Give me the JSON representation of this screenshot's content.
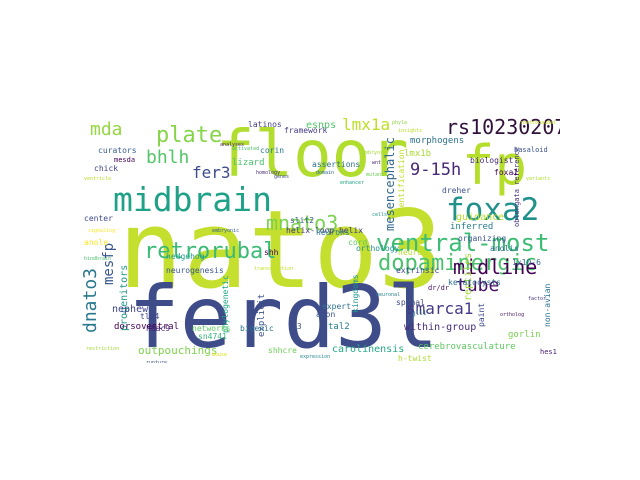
{
  "words": [
    {
      "text": "nato3",
      "color": "#c5df2e"
    },
    {
      "text": "ferd3l",
      "color": "#3e4c89"
    },
    {
      "text": "floor",
      "color": "#b1dd2f"
    },
    {
      "text": "fp",
      "color": "#b5de2b"
    },
    {
      "text": "midbrain",
      "color": "#1fa187"
    },
    {
      "text": "foxa2",
      "color": "#21918c"
    },
    {
      "text": "ventral-most",
      "color": "#3dbc74"
    },
    {
      "text": "dopaminergic",
      "color": "#4ac16d"
    },
    {
      "text": "retrorubal",
      "color": "#3aba76"
    },
    {
      "text": "midline",
      "color": "#440154"
    },
    {
      "text": "rs10230207",
      "color": "#30123b"
    },
    {
      "text": "mnato3",
      "color": "#7ad151"
    },
    {
      "text": "plate",
      "color": "#86d549"
    },
    {
      "text": "mda",
      "color": "#95d840"
    },
    {
      "text": "bhlh",
      "color": "#54c568"
    },
    {
      "text": "fer3",
      "color": "#3e4a89"
    },
    {
      "text": "9-15h",
      "color": "#482777"
    },
    {
      "text": "lmx1a",
      "color": "#bddf26"
    },
    {
      "text": "smarca1",
      "color": "#443a83"
    },
    {
      "text": "tube",
      "color": "#471063"
    },
    {
      "text": "dnato3",
      "color": "#2a788e"
    },
    {
      "text": "mesfp",
      "color": "#39568c"
    },
    {
      "text": "mesencephalic",
      "color": "#31688e"
    },
    {
      "text": "guidance",
      "color": "#b5de2b"
    },
    {
      "text": "lmx1b",
      "color": "#a8db34"
    },
    {
      "text": "esnps",
      "color": "#52c569"
    },
    {
      "text": "morphogens",
      "color": "#2c728e"
    },
    {
      "text": "framework",
      "color": "#433d84"
    },
    {
      "text": "latinos",
      "color": "#433e85"
    },
    {
      "text": "curators",
      "color": "#355f8d"
    },
    {
      "text": "chick",
      "color": "#414487"
    },
    {
      "text": "mesda",
      "color": "#440154"
    },
    {
      "text": "corin",
      "color": "#2a788e"
    },
    {
      "text": "lizard",
      "color": "#4ac16d"
    },
    {
      "text": "helix-loop-helix",
      "color": "#46337e"
    },
    {
      "text": "slit2",
      "color": "#38588c"
    },
    {
      "text": "assertions",
      "color": "#2d708e"
    },
    {
      "text": "foxa1",
      "color": "#440154"
    },
    {
      "text": "biologist",
      "color": "#482878"
    },
    {
      "text": "extrinsic",
      "color": "#3e4989"
    },
    {
      "text": "inferred",
      "color": "#277f8e"
    },
    {
      "text": "neurons",
      "color": "#26828e"
    },
    {
      "text": "anole",
      "color": "#fde725"
    },
    {
      "text": "hedgehog",
      "color": "#1f9e89"
    },
    {
      "text": "phylogenetic",
      "color": "#21a685"
    },
    {
      "text": "explicit",
      "color": "#3b528b"
    },
    {
      "text": "shh",
      "color": "#440154"
    },
    {
      "text": "cord",
      "color": "#5ec962"
    },
    {
      "text": "reptiles",
      "color": "#a0da39"
    },
    {
      "text": "organizing",
      "color": "#39568c"
    },
    {
      "text": "anolis",
      "color": "#2f6c8e"
    },
    {
      "text": "1x10-6",
      "color": "#31688e"
    },
    {
      "text": "keratocysts",
      "color": "#2e6e8e"
    },
    {
      "text": "dr/dr",
      "color": "#471365"
    },
    {
      "text": "spinal",
      "color": "#3e4989"
    },
    {
      "text": "expert",
      "color": "#2d718e"
    },
    {
      "text": "axon",
      "color": "#3b528b"
    },
    {
      "text": "within-group",
      "color": "#472c7a"
    },
    {
      "text": "gorlin",
      "color": "#7ad151"
    },
    {
      "text": "nephew",
      "color": "#404688"
    },
    {
      "text": "outpouchings",
      "color": "#7fd34e"
    },
    {
      "text": "sn4741",
      "color": "#35b779"
    },
    {
      "text": "hdac9",
      "color": "#482576"
    },
    {
      "text": "tle4",
      "color": "#3f4788"
    },
    {
      "text": "dorsoventral",
      "color": "#440154"
    },
    {
      "text": "networks",
      "color": "#5ec962"
    },
    {
      "text": "bigenic",
      "color": "#2c738e"
    },
    {
      "text": "v3",
      "color": "#3b528b"
    },
    {
      "text": "tal2",
      "color": "#287d8e"
    },
    {
      "text": "carolinensis",
      "color": "#22a884"
    },
    {
      "text": "cerebrovasculature",
      "color": "#5ec962"
    },
    {
      "text": "hes1",
      "color": "#482173"
    },
    {
      "text": "shhcre",
      "color": "#6ece58"
    },
    {
      "text": "h-twist",
      "color": "#addc30"
    },
    {
      "text": "dreher",
      "color": "#3b528b"
    },
    {
      "text": "non-avian",
      "color": "#2c728e"
    },
    {
      "text": "neurogenesis",
      "color": "#39568c"
    },
    {
      "text": "progenitors",
      "color": "#1f988b"
    },
    {
      "text": "center",
      "color": "#3e4989"
    },
    {
      "text": "identification",
      "color": "#bddf26"
    },
    {
      "text": "neural",
      "color": "#b5de2b"
    },
    {
      "text": "orthology",
      "color": "#21918c"
    },
    {
      "text": "basaloid",
      "color": "#3b528b"
    },
    {
      "text": "kingdoms",
      "color": "#21918c"
    },
    {
      "text": "paint",
      "color": "#3e4989"
    },
    {
      "text": "oblongata reference",
      "color": "#46327e"
    },
    {
      "text": "embryos",
      "color": "#a5db36"
    },
    {
      "text": "analyses",
      "color": "#481f70"
    },
    {
      "text": "rostrocaudal",
      "color": "#c8e020"
    },
    {
      "text": "ventricle",
      "color": "#b8de29"
    },
    {
      "text": "gli1",
      "color": "#2c738e"
    },
    {
      "text": "hindbrain",
      "color": "#4ac16d"
    },
    {
      "text": "signaling",
      "color": "#fde725"
    },
    {
      "text": "restriction",
      "color": "#a2da37"
    },
    {
      "text": "transcription",
      "color": "#c2df23"
    },
    {
      "text": "domain",
      "color": "#31688e"
    },
    {
      "text": "mutant",
      "color": "#6ece58"
    },
    {
      "text": "variants",
      "color": "#b0dd2f"
    },
    {
      "text": "factor",
      "color": "#46337e"
    },
    {
      "text": "cells",
      "color": "#1f9a8a"
    },
    {
      "text": "genes",
      "color": "#3e4a89"
    },
    {
      "text": "mouse",
      "color": "#d8e219"
    },
    {
      "text": "expression",
      "color": "#25848e"
    },
    {
      "text": "ortholog",
      "color": "#471063"
    },
    {
      "text": "homology",
      "color": "#472d7b"
    },
    {
      "text": "neuronal",
      "color": "#26828e"
    },
    {
      "text": "enhancer",
      "color": "#20a486"
    },
    {
      "text": "embryonic",
      "color": "#355f8d"
    },
    {
      "text": "activated",
      "color": "#4ac16d"
    },
    {
      "text": "insights",
      "color": "#b8de29"
    },
    {
      "text": "phyla",
      "color": "#90d743"
    },
    {
      "text": "rupture",
      "color": "#3a548c"
    },
    {
      "text": "wnt",
      "color": "#481b6d"
    }
  ]
}
